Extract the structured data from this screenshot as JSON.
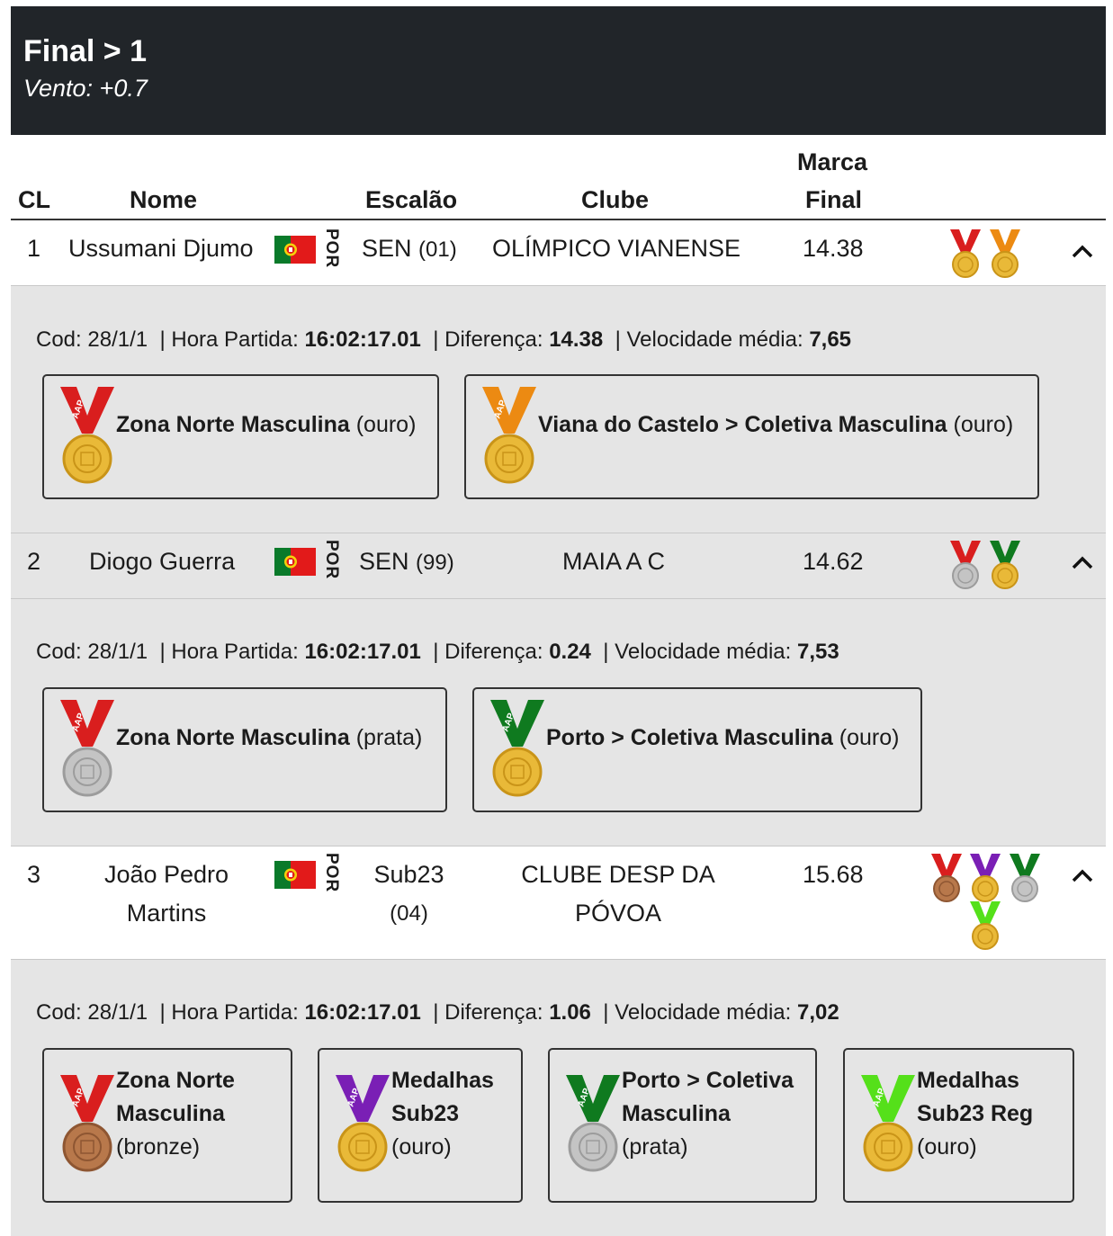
{
  "header": {
    "title": "Final > 1",
    "subtitle": "Vento: +0.7"
  },
  "columns": {
    "cl": "CL",
    "nome": "Nome",
    "escalao": "Escalão",
    "clube": "Clube",
    "marca_line1": "Marca",
    "marca_line2": "Final"
  },
  "colors": {
    "header_bg": "#212529",
    "detail_bg": "#e5e5e5",
    "gold": "#e9b938",
    "silver": "#c4c4c4",
    "bronze": "#b8784b",
    "ribbon_red": "#d91e1e",
    "ribbon_orange": "#ec8a12",
    "ribbon_green": "#0f7a1f",
    "ribbon_purple": "#7a1fb5",
    "ribbon_lime": "#55e01a"
  },
  "rows": [
    {
      "cl": "1",
      "nome": "Ussumani Djumo",
      "nat": "POR",
      "escalao": "SEN",
      "escalao_year": "(01)",
      "clube": "OLÍMPICO VIANENSE",
      "marca": "14.38",
      "info": {
        "cod_label": "Cod:",
        "cod": "28/1/1",
        "hora_label": "Hora Partida:",
        "hora": "16:02:17.01",
        "dif_label": "Diferença:",
        "dif": "14.38",
        "vel_label": "Velocidade média:",
        "vel": "7,65"
      },
      "medals": [
        {
          "title": "Zona Norte Masculina",
          "type": "(ouro)",
          "ribbon": "red",
          "medal": "gold",
          "icon": "aap-medal-icon"
        },
        {
          "title": "Viana do Castelo > Coletiva Masculina",
          "type": "(ouro)",
          "ribbon": "orange",
          "medal": "gold",
          "icon": "aap-medal-icon"
        }
      ]
    },
    {
      "cl": "2",
      "nome": "Diogo Guerra",
      "nat": "POR",
      "escalao": "SEN",
      "escalao_year": "(99)",
      "clube": "MAIA A C",
      "marca": "14.62",
      "info": {
        "cod_label": "Cod:",
        "cod": "28/1/1",
        "hora_label": "Hora Partida:",
        "hora": "16:02:17.01",
        "dif_label": "Diferença:",
        "dif": "0.24",
        "vel_label": "Velocidade média:",
        "vel": "7,53"
      },
      "medals": [
        {
          "title": "Zona Norte Masculina",
          "type": "(prata)",
          "ribbon": "red",
          "medal": "silver",
          "icon": "aap-medal-icon"
        },
        {
          "title": "Porto > Coletiva Masculina",
          "type": "(ouro)",
          "ribbon": "green",
          "medal": "gold",
          "icon": "aap-medal-icon"
        }
      ]
    },
    {
      "cl": "3",
      "nome_line1": "João Pedro",
      "nome_line2": "Martins",
      "nat": "POR",
      "escalao": "Sub23",
      "escalao_year": "(04)",
      "clube_line1": "CLUBE DESP DA",
      "clube_line2": "PÓVOA",
      "marca": "15.68",
      "info": {
        "cod_label": "Cod:",
        "cod": "28/1/1",
        "hora_label": "Hora Partida:",
        "hora": "16:02:17.01",
        "dif_label": "Diferença:",
        "dif": "1.06",
        "vel_label": "Velocidade média:",
        "vel": "7,02"
      },
      "medals": [
        {
          "title_line1": "Zona Norte",
          "title_line2": "Masculina",
          "type": "(bronze)",
          "ribbon": "red",
          "medal": "bronze",
          "icon": "aap-medal-icon"
        },
        {
          "title_line1": "Medalhas",
          "title_line2": "Sub23",
          "type": "(ouro)",
          "ribbon": "purple",
          "medal": "gold",
          "icon": "aap-medal-icon"
        },
        {
          "title_line1": "Porto > Coletiva",
          "title_line2": "Masculina",
          "type": "(prata)",
          "ribbon": "green",
          "medal": "silver",
          "icon": "aap-medal-icon"
        },
        {
          "title_line1": "Medalhas",
          "title_line2": "Sub23 Reg",
          "type": "(ouro)",
          "ribbon": "lime",
          "medal": "gold",
          "icon": "aap-medal-icon"
        }
      ]
    }
  ]
}
